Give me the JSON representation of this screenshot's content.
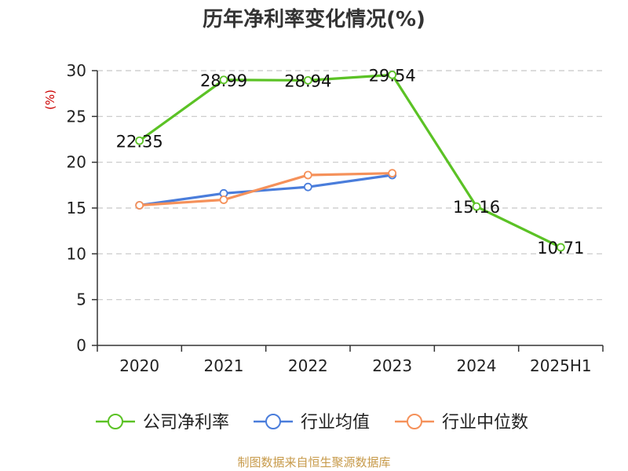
{
  "chart_data": {
    "type": "line",
    "title": "历年净利率变化情况(%)",
    "ylabel": "(%)",
    "xlabel": "",
    "categories": [
      "2020",
      "2021",
      "2022",
      "2023",
      "2024",
      "2025H1"
    ],
    "ylim": [
      0,
      30
    ],
    "yticks": [
      0,
      5,
      10,
      15,
      20,
      25,
      30
    ],
    "grid": true,
    "legend_position": "bottom",
    "series": [
      {
        "name": "公司净利率",
        "color": "#5bc225",
        "values": [
          22.35,
          28.99,
          28.94,
          29.54,
          15.16,
          10.71
        ],
        "labels": [
          "22.35",
          "28.99",
          "28.94",
          "29.54",
          "15.16",
          "10.71"
        ]
      },
      {
        "name": "行业均值",
        "color": "#4a7ddb",
        "values": [
          15.3,
          16.6,
          17.3,
          18.6,
          null,
          null
        ]
      },
      {
        "name": "行业中位数",
        "color": "#f5915a",
        "values": [
          15.3,
          15.9,
          18.6,
          18.8,
          null,
          null
        ]
      }
    ]
  },
  "footer": {
    "source": "制图数据来自恒生聚源数据库"
  }
}
